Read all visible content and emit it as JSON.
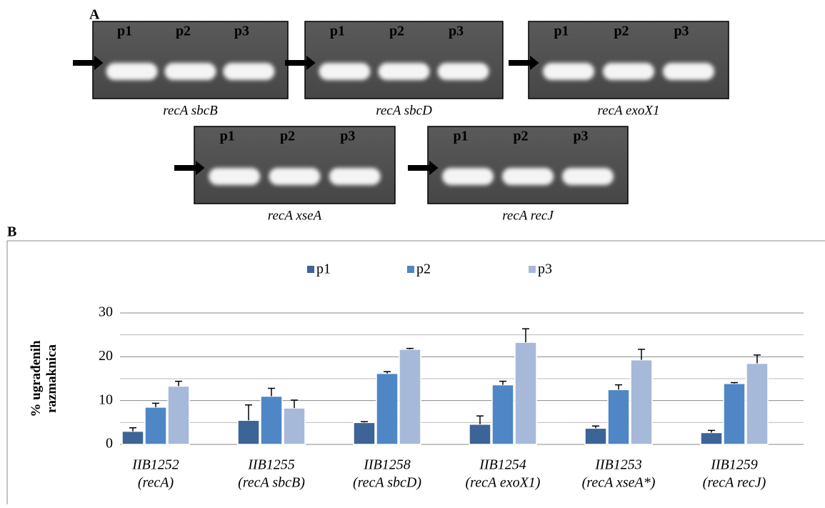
{
  "panel_a": {
    "label": "A",
    "gels": [
      {
        "lanes": [
          "p1",
          "p2",
          "p3"
        ],
        "caption": "recA sbcB"
      },
      {
        "lanes": [
          "p1",
          "p2",
          "p3"
        ],
        "caption": "recA sbcD"
      },
      {
        "lanes": [
          "p1",
          "p2",
          "p3"
        ],
        "caption": "recA exoX1"
      },
      {
        "lanes": [
          "p1",
          "p2",
          "p3"
        ],
        "caption": "recA xseA"
      },
      {
        "lanes": [
          "p1",
          "p2",
          "p3"
        ],
        "caption": "recA recJ"
      }
    ]
  },
  "chart_data": {
    "type": "bar",
    "panel_label": "B",
    "ylabel": [
      "% ugrađenih",
      "razmaknica"
    ],
    "categories": [
      [
        "IIB1252",
        "(recA)"
      ],
      [
        "IIB1255",
        "(recA sbcB)"
      ],
      [
        "IIB1258",
        "(recA sbcD)"
      ],
      [
        "IIB1254",
        "(recA exoX1)"
      ],
      [
        "IIB1253",
        "(recA xseA*)"
      ],
      [
        "IIB1259",
        "(recA recJ)"
      ]
    ],
    "series": [
      {
        "name": "p1",
        "color": "#3d6496",
        "values": [
          3.0,
          5.5,
          5.0,
          4.6,
          3.7,
          2.7
        ],
        "errors": [
          0.8,
          3.5,
          0.2,
          1.9,
          0.5,
          0.5
        ]
      },
      {
        "name": "p2",
        "color": "#4f86c6",
        "values": [
          8.5,
          11.0,
          16.2,
          13.6,
          12.5,
          13.9
        ],
        "errors": [
          0.9,
          1.8,
          0.4,
          0.8,
          1.1,
          0.2
        ]
      },
      {
        "name": "p3",
        "color": "#a7b9d9",
        "values": [
          13.3,
          8.3,
          21.7,
          23.3,
          19.3,
          18.5
        ],
        "errors": [
          1.1,
          1.8,
          0.2,
          3.1,
          2.4,
          1.9
        ]
      }
    ],
    "ylim": [
      0,
      30
    ],
    "yticks": [
      0,
      10,
      20,
      30
    ],
    "minor_yticks": [
      5,
      15,
      25
    ],
    "grid": true,
    "legend": "top"
  }
}
